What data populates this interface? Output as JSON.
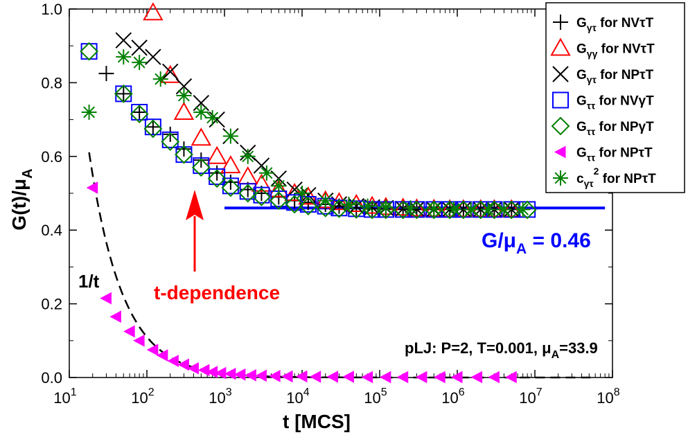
{
  "chart_data": {
    "type": "scatter",
    "xlabel": "t [MCS]",
    "ylabel_main": "G(t)/μ",
    "ylabel_sub": "A",
    "xscale": "log",
    "xlim": [
      10,
      100000000
    ],
    "ylim": [
      0,
      1.0
    ],
    "x_ticks": [
      10,
      100,
      1000,
      10000,
      100000,
      1000000,
      10000000,
      100000000
    ],
    "x_tick_labels": [
      {
        "base": "10",
        "exp": "1"
      },
      {
        "base": "10",
        "exp": "2"
      },
      {
        "base": "10",
        "exp": "3"
      },
      {
        "base": "10",
        "exp": "4"
      },
      {
        "base": "10",
        "exp": "5"
      },
      {
        "base": "10",
        "exp": "6"
      },
      {
        "base": "10",
        "exp": "7"
      },
      {
        "base": "10",
        "exp": "8"
      }
    ],
    "y_ticks": [
      0,
      0.2,
      0.4,
      0.6,
      0.8,
      1.0
    ],
    "y_tick_labels": [
      "0.0",
      "0.2",
      "0.4",
      "0.6",
      "0.8",
      "1.0"
    ],
    "legend_position": "top-right",
    "series": [
      {
        "legend": {
          "g": "G",
          "sub": "γτ",
          "sup": "",
          "rest": " for NVτT"
        },
        "marker": "plus",
        "color": "#000000",
        "x": [
          30,
          50,
          80,
          120,
          200,
          300,
          500,
          800,
          1200,
          2000,
          3000,
          5000,
          8000,
          12000,
          20000,
          30000,
          50000,
          80000,
          120000,
          200000,
          300000,
          500000,
          800000,
          1200000,
          2000000,
          3000000,
          5000000
        ],
        "y": [
          0.825,
          0.77,
          0.72,
          0.68,
          0.66,
          0.62,
          0.59,
          0.555,
          0.53,
          0.51,
          0.5,
          0.49,
          0.48,
          0.475,
          0.47,
          0.465,
          0.46,
          0.458,
          0.457,
          0.456,
          0.456,
          0.456,
          0.456,
          0.456,
          0.456,
          0.456,
          0.456
        ]
      },
      {
        "legend": {
          "g": "G",
          "sub": "γγ",
          "sup": "",
          "rest": " for NVτT"
        },
        "marker": "triangle",
        "color": "#ff0000",
        "x": [
          120,
          200,
          300,
          500,
          800,
          1200,
          2000,
          3000,
          5000,
          8000,
          12000,
          20000,
          30000,
          50000,
          80000,
          120000,
          200000,
          300000,
          500000,
          800000,
          1200000,
          2000000,
          3000000,
          5000000
        ],
        "y": [
          0.99,
          0.82,
          0.72,
          0.65,
          0.6,
          0.575,
          0.545,
          0.525,
          0.51,
          0.5,
          0.49,
          0.48,
          0.475,
          0.47,
          0.465,
          0.462,
          0.46,
          0.458,
          0.457,
          0.456,
          0.456,
          0.456,
          0.456,
          0.456
        ]
      },
      {
        "legend": {
          "g": "G",
          "sub": "γτ",
          "sup": "",
          "rest": " for NPτT"
        },
        "marker": "x",
        "color": "#000000",
        "x": [
          50,
          80,
          120,
          200,
          300,
          500,
          800,
          1200,
          2000,
          3000,
          5000,
          8000,
          12000,
          20000,
          30000,
          50000,
          80000,
          120000,
          200000,
          300000,
          500000,
          800000,
          1200000,
          2000000,
          3000000,
          5000000
        ],
        "y": [
          0.915,
          0.895,
          0.87,
          0.83,
          0.79,
          0.745,
          0.7,
          0.655,
          0.61,
          0.575,
          0.54,
          0.51,
          0.495,
          0.48,
          0.47,
          0.465,
          0.462,
          0.46,
          0.458,
          0.457,
          0.456,
          0.456,
          0.456,
          0.456,
          0.456,
          0.456
        ]
      },
      {
        "legend": {
          "g": "G",
          "sub": "ττ",
          "sup": "",
          "rest": " for NVγT"
        },
        "marker": "square",
        "color": "#0000ff",
        "x": [
          18,
          50,
          80,
          120,
          200,
          300,
          500,
          800,
          1200,
          2000,
          3000,
          5000,
          8000,
          12000,
          20000,
          30000,
          50000,
          80000,
          120000,
          200000,
          300000,
          500000,
          800000,
          1200000,
          2000000,
          3000000,
          5000000,
          8000000
        ],
        "y": [
          0.885,
          0.77,
          0.72,
          0.68,
          0.645,
          0.605,
          0.575,
          0.545,
          0.52,
          0.505,
          0.495,
          0.485,
          0.475,
          0.47,
          0.465,
          0.46,
          0.458,
          0.456,
          0.456,
          0.456,
          0.456,
          0.456,
          0.456,
          0.456,
          0.456,
          0.456,
          0.456,
          0.456
        ]
      },
      {
        "legend": {
          "g": "G",
          "sub": "ττ",
          "sup": "",
          "rest": " for NPγT"
        },
        "marker": "diamond",
        "color": "#008000",
        "x": [
          18,
          50,
          80,
          120,
          200,
          300,
          500,
          800,
          1200,
          2000,
          3000,
          5000,
          8000,
          12000,
          20000,
          30000,
          50000,
          80000,
          120000,
          200000,
          300000,
          500000,
          800000,
          1200000,
          2000000,
          3000000,
          5000000,
          8000000
        ],
        "y": [
          0.885,
          0.77,
          0.715,
          0.675,
          0.64,
          0.605,
          0.57,
          0.54,
          0.515,
          0.5,
          0.49,
          0.48,
          0.47,
          0.465,
          0.46,
          0.458,
          0.456,
          0.455,
          0.455,
          0.455,
          0.455,
          0.455,
          0.455,
          0.455,
          0.455,
          0.455,
          0.455,
          0.455
        ]
      },
      {
        "legend": {
          "g": "G",
          "sub": "ττ",
          "sup": "",
          "rest": " for NPτT"
        },
        "marker": "left-triangle",
        "color": "#ff00ff",
        "x": [
          20,
          30,
          40,
          60,
          80,
          120,
          160,
          220,
          300,
          400,
          550,
          700,
          900,
          1200,
          1600,
          2200,
          3000,
          4500,
          6500,
          10000,
          15000,
          25000,
          40000,
          70000,
          120000,
          200000,
          350000,
          600000,
          1000000,
          1800000,
          3000000,
          5000000
        ],
        "y": [
          0.515,
          0.215,
          0.165,
          0.125,
          0.1,
          0.075,
          0.06,
          0.045,
          0.035,
          0.025,
          0.02,
          0.015,
          0.012,
          0.01,
          0.008,
          0.006,
          0.005,
          0.004,
          0.003,
          0.003,
          0.002,
          0.002,
          0.002,
          0.001,
          0.001,
          0.001,
          0.001,
          0.001,
          0.001,
          0.001,
          0.001,
          0.001
        ]
      },
      {
        "legend": {
          "g": "c",
          "sub": "γτ",
          "sup": "2",
          "rest": " for NPτT"
        },
        "marker": "star",
        "color": "#008000",
        "x": [
          18,
          50,
          80,
          150,
          300,
          500,
          700,
          1200,
          2000,
          3500,
          5000,
          10000,
          20000,
          40000,
          70000,
          120000,
          250000,
          500000,
          900000,
          1500000,
          2500000,
          4000000,
          7000000
        ],
        "y": [
          0.72,
          0.87,
          0.855,
          0.81,
          0.765,
          0.72,
          0.705,
          0.655,
          0.6,
          0.555,
          0.52,
          0.5,
          0.48,
          0.47,
          0.465,
          0.462,
          0.46,
          0.458,
          0.457,
          0.456,
          0.456,
          0.456,
          0.456
        ]
      }
    ],
    "lines": [
      {
        "name": "1/t",
        "style": "dashed",
        "color": "#000000",
        "label_main": "1/t"
      },
      {
        "name": "G/μA = 0.46",
        "style": "solid",
        "color": "#0000ff",
        "y": 0.46,
        "x_start": 1000,
        "x_end": 80000000
      }
    ],
    "annotations": {
      "plateau": {
        "main": "G/μ",
        "sub": "A",
        "rest": " = 0.46",
        "color": "#0000ff"
      },
      "t_dependence": {
        "text": "t-dependence",
        "color": "#ff0000"
      },
      "params": {
        "main": "pLJ:  P=2, T=0.001, μ",
        "sub": "A",
        "rest": "=33.9"
      }
    }
  }
}
